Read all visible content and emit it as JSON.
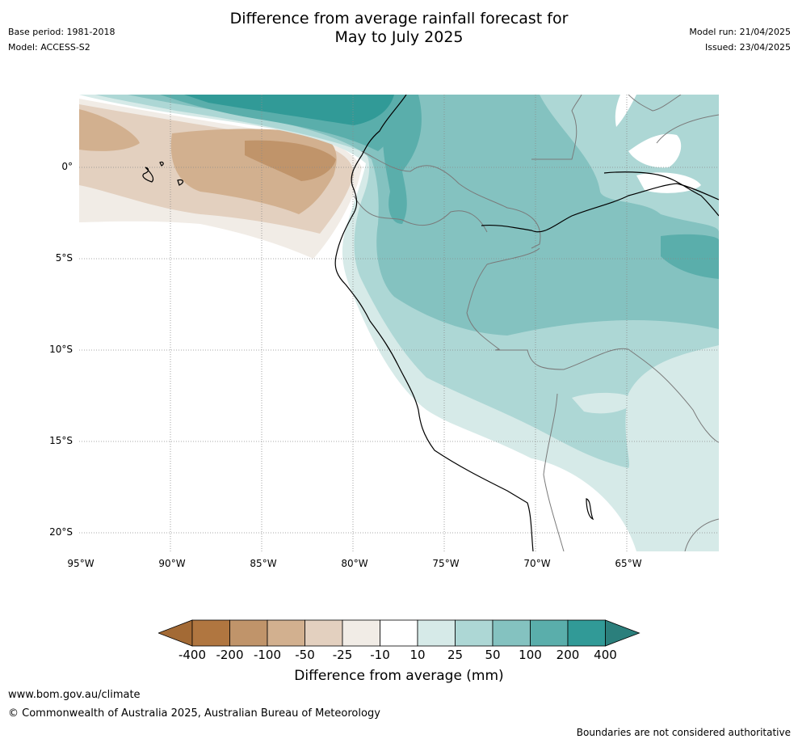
{
  "header": {
    "title_line1": "Difference from average rainfall forecast for",
    "title_line2": "May to July 2025",
    "base_period": "Base period: 1981-2018",
    "model": "Model: ACCESS-S2",
    "model_run": "Model run: 21/04/2025",
    "issued": "Issued: 23/04/2025"
  },
  "map": {
    "lat_labels": [
      "0°",
      "5°S",
      "10°S",
      "15°S",
      "20°S"
    ],
    "lon_labels": [
      "95°W",
      "90°W",
      "85°W",
      "80°W",
      "75°W",
      "70°W",
      "65°W"
    ]
  },
  "colorbar": {
    "title": "Difference from average (mm)",
    "ticks": [
      "-400",
      "-200",
      "-100",
      "-50",
      "-25",
      "-10",
      "10",
      "25",
      "50",
      "100",
      "200",
      "400"
    ],
    "colors": [
      "#a36a35",
      "#b07640",
      "#c0946a",
      "#d2b08f",
      "#e3d0bf",
      "#f1ece6",
      "#ffffff",
      "#d6eae8",
      "#add7d5",
      "#84c2c0",
      "#5aaeab",
      "#319a97",
      "#2b7f7c"
    ]
  },
  "footer": {
    "url": "www.bom.gov.au/climate",
    "copyright": "© Commonwealth of Australia 2025, Australian Bureau of Meteorology",
    "disclaimer": "Boundaries are not considered authoritative"
  }
}
